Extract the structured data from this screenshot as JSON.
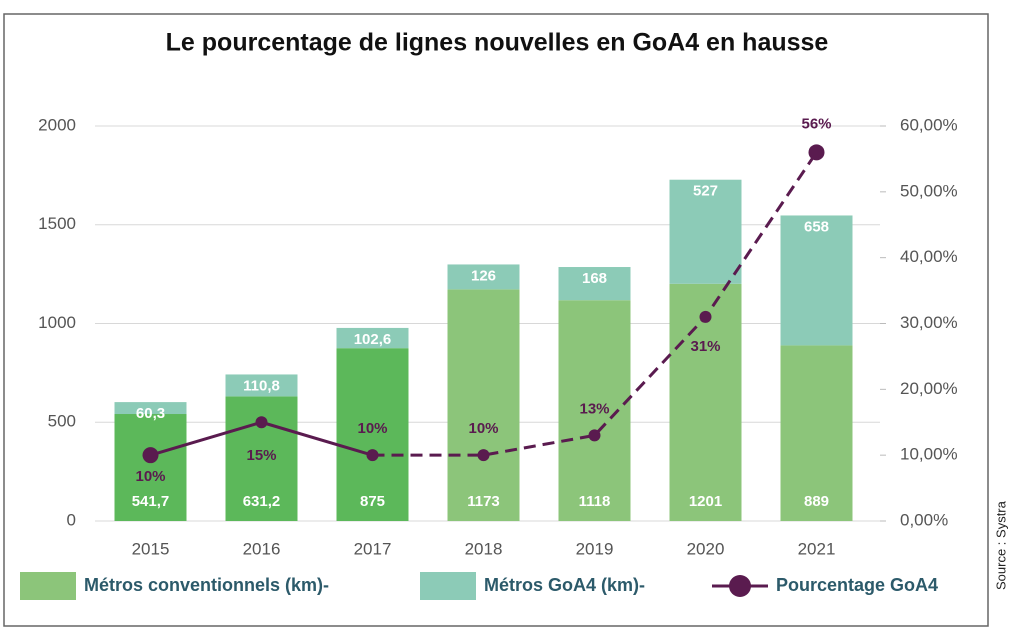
{
  "chart_data": {
    "type": "bar-line",
    "title": "Le pourcentage de lignes nouvelles en GoA4 en hausse",
    "source": "Source : Systra",
    "categories": [
      "2015",
      "2016",
      "2017",
      "2018",
      "2019",
      "2020",
      "2021"
    ],
    "series": [
      {
        "name": "Métros conventionnels (km)-",
        "type": "bar",
        "color": "#8cc57a",
        "colors": [
          "#5cb85a",
          "#5cb85a",
          "#5cb85a",
          "#8cc57a",
          "#8cc57a",
          "#8cc57a",
          "#8cc57a"
        ],
        "values": [
          541.7,
          631.2,
          875,
          1173,
          1118,
          1201,
          889
        ],
        "value_labels": [
          "541,7",
          "631,2",
          "875",
          "1173",
          "1118",
          "1201",
          "889"
        ]
      },
      {
        "name": "Métros GoA4 (km)-",
        "type": "bar",
        "color": "#8ccbb7",
        "values": [
          60.3,
          110.8,
          102.6,
          126,
          168,
          527,
          658
        ],
        "value_labels": [
          "60,3",
          "110,8",
          "102,6",
          "126",
          "168",
          "527",
          "658"
        ]
      },
      {
        "name": "Pourcentage GoA4",
        "type": "line",
        "axis": "y2",
        "color": "#5a1b4f",
        "values": [
          10,
          15,
          10,
          10,
          13,
          31,
          56
        ],
        "value_labels": [
          "10%",
          "15%",
          "10%",
          "10%",
          "13%",
          "31%",
          "56%"
        ],
        "dash_from": "2017"
      }
    ],
    "ylim": [
      0,
      2000
    ],
    "yticks": [
      0,
      500,
      1000,
      1500,
      2000
    ],
    "y2lim": [
      0,
      60
    ],
    "y2ticks": [
      {
        "value": 0,
        "label": "0,00%"
      },
      {
        "value": 10,
        "label": "10,00%"
      },
      {
        "value": 20,
        "label": "20,00%"
      },
      {
        "value": 30,
        "label": "30,00%"
      },
      {
        "value": 40,
        "label": "40,00%"
      },
      {
        "value": 50,
        "label": "50,00%"
      },
      {
        "value": 60,
        "label": "60,00%"
      }
    ],
    "grid": true,
    "legend": "bottom"
  }
}
